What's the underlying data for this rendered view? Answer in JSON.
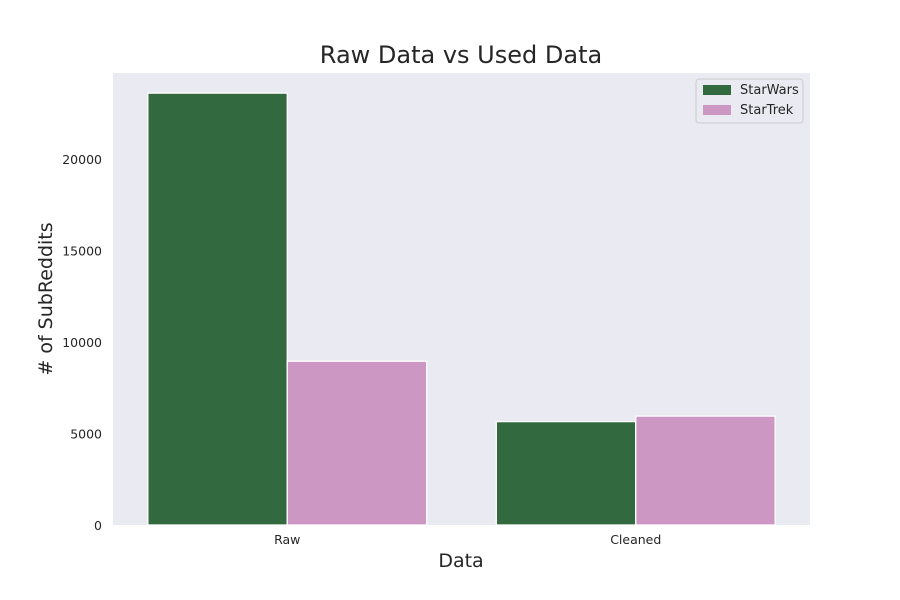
{
  "chart_data": {
    "type": "bar",
    "title": "Raw Data vs Used Data",
    "xlabel": "Data",
    "ylabel": "# of SubReddits",
    "categories": [
      "Raw",
      "Cleaned"
    ],
    "series": [
      {
        "name": "StarWars",
        "values": [
          23600,
          5650
        ],
        "color": "#33693e"
      },
      {
        "name": "StarTrek",
        "values": [
          8950,
          5950
        ],
        "color": "#cc97c2"
      }
    ],
    "ylim": [
      0,
      24700
    ],
    "yticks": [
      0,
      5000,
      10000,
      15000,
      20000
    ],
    "grid": false,
    "legend_position": "top-right"
  }
}
